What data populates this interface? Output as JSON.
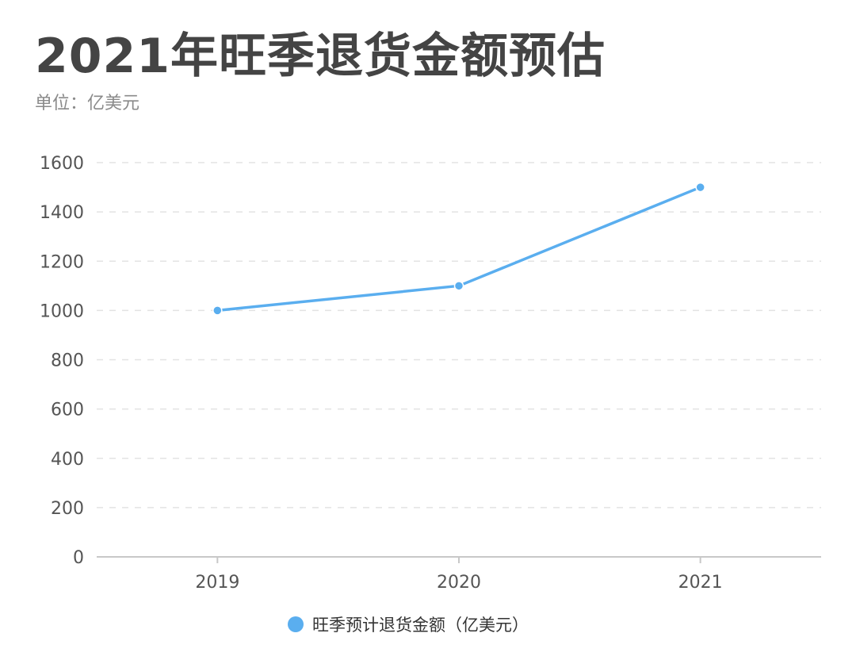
{
  "header": {
    "title": "2021年旺季退货金额预估",
    "subtitle": "单位：亿美元"
  },
  "colors": {
    "series": "#5aaeef",
    "grid": "#e3e3e3",
    "axis": "#c8c8c8"
  },
  "chart_data": {
    "type": "line",
    "title": "2021年旺季退货金额预估",
    "subtitle": "单位：亿美元",
    "xlabel": "",
    "ylabel": "",
    "categories": [
      "2019",
      "2020",
      "2021"
    ],
    "series": [
      {
        "name": "旺季预计退货金额（亿美元）",
        "values": [
          1000,
          1100,
          1500
        ]
      }
    ],
    "ylim": [
      0,
      1600
    ],
    "yticks": [
      "0",
      "200",
      "400",
      "600",
      "800",
      "1000",
      "1200",
      "1400",
      "1600"
    ],
    "grid": true,
    "legend": "bottom-center"
  }
}
